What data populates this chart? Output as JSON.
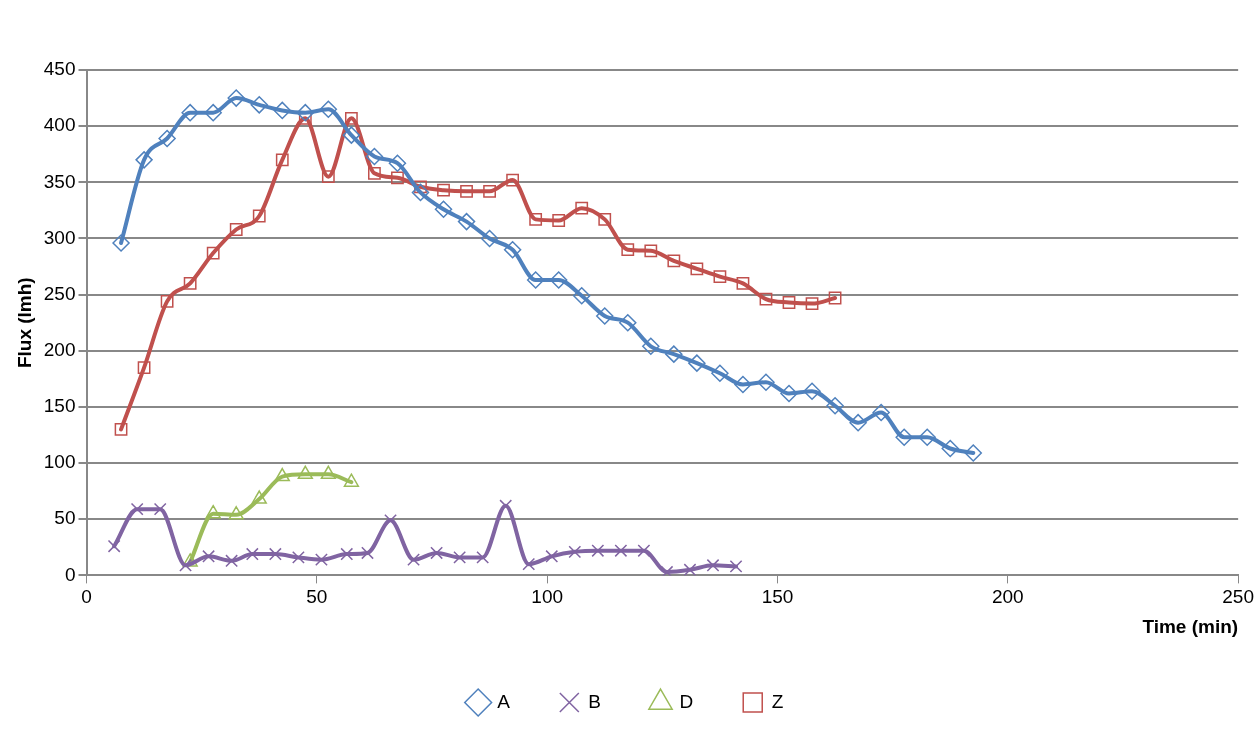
{
  "chart_data": {
    "type": "line",
    "xlabel": "Time (min)",
    "ylabel": "Flux (lmh)",
    "xlim": [
      0,
      250
    ],
    "xticks": [
      0,
      50,
      100,
      150,
      200,
      250
    ],
    "ylim": [
      0,
      450
    ],
    "yticks": [
      0,
      50,
      100,
      150,
      200,
      250,
      300,
      350,
      400,
      450
    ],
    "grid": "y",
    "legend": "bottom",
    "line_style": "solid",
    "series": [
      {
        "name": "A",
        "color": "#4f81bd",
        "marker": "diamond",
        "x": [
          7.5,
          12.5,
          17.5,
          22.5,
          27.5,
          32.5,
          37.5,
          42.5,
          47.5,
          52.5,
          57.5,
          62.5,
          67.5,
          72.5,
          77.5,
          82.5,
          87.5,
          92.5,
          97.5,
          102.5,
          107.5,
          112.5,
          117.5,
          122.5,
          127.5,
          132.5,
          137.5,
          142.5,
          147.5,
          152.5,
          157.5,
          162.5,
          167.5,
          172.5,
          177.5,
          182.5,
          187.5,
          192.5
        ],
        "values": [
          296,
          370,
          389,
          412,
          412,
          425,
          419,
          414,
          412,
          415,
          392,
          373,
          367,
          341,
          326,
          315,
          300,
          290,
          263,
          263,
          249,
          231,
          225,
          204,
          197,
          189,
          180,
          170,
          172,
          162,
          164,
          151,
          136,
          145,
          123,
          123,
          113,
          109
        ]
      },
      {
        "name": "B",
        "color": "#8064a2",
        "marker": "cross",
        "x": [
          6,
          11,
          16,
          21.5,
          26.5,
          31.5,
          36,
          41,
          46,
          51,
          56.5,
          61,
          66,
          71,
          76,
          81,
          86,
          91,
          96,
          101,
          106,
          111,
          116,
          121,
          126,
          131,
          136,
          141
        ],
        "values": [
          26,
          59,
          59,
          9,
          17,
          13,
          19,
          19,
          16,
          14,
          19,
          20,
          49,
          14,
          20,
          16,
          16,
          62,
          10,
          17,
          21,
          22,
          22,
          22,
          3,
          5,
          9,
          8
        ]
      },
      {
        "name": "D",
        "color": "#9bbb59",
        "marker": "triangle",
        "x": [
          22.5,
          27.5,
          32.5,
          37.5,
          42.5,
          47.5,
          52.5,
          57.5
        ],
        "values": [
          12,
          55,
          54,
          68,
          88,
          90,
          90,
          83
        ]
      },
      {
        "name": "Z",
        "color": "#c0504d",
        "marker": "square",
        "x": [
          7.5,
          12.5,
          17.5,
          22.5,
          27.5,
          32.5,
          37.5,
          42.5,
          47.5,
          52.5,
          57.5,
          62.5,
          67.5,
          72.5,
          77.5,
          82.5,
          87.5,
          92.5,
          97.5,
          102.5,
          107.5,
          112.5,
          117.5,
          122.5,
          127.5,
          132.5,
          137.5,
          142.5,
          147.5,
          152.5,
          157.5,
          162.5
        ],
        "values": [
          130,
          185,
          244,
          260,
          287,
          308,
          320,
          370,
          407,
          355,
          407,
          358,
          354,
          346,
          343,
          342,
          342,
          352,
          317,
          316,
          327,
          317,
          290,
          289,
          280,
          273,
          266,
          260,
          246,
          243,
          242,
          247
        ]
      }
    ]
  }
}
